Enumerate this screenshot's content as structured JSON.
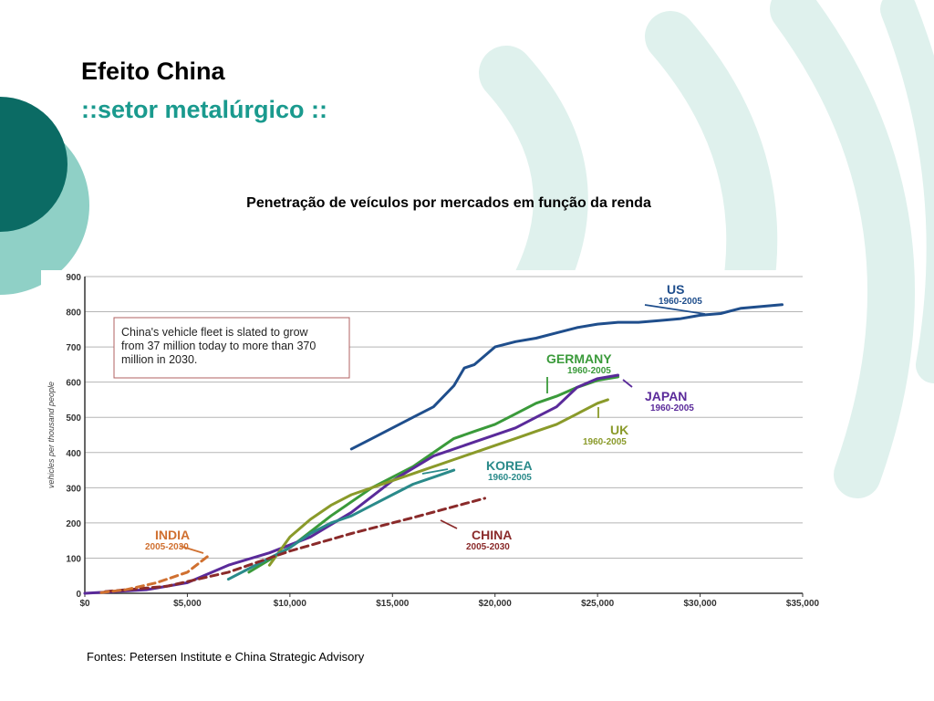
{
  "slide": {
    "title": "Efeito China",
    "subtitle": "::setor metalúrgico ::",
    "chart_caption": "Penetração de veículos por mercados em função da renda",
    "source": "Fontes: Petersen Institute e China Strategic Advisory"
  },
  "colors": {
    "brand_dark": "#0b6b64",
    "brand_light": "#8fd0c6",
    "caption_title_color": "#1a9a8e"
  },
  "chart_data": {
    "type": "line",
    "title": "",
    "xlabel": "",
    "ylabel": "vehicles per thousand people",
    "xlim": [
      0,
      35000
    ],
    "ylim": [
      0,
      900
    ],
    "grid": true,
    "x_ticks": [
      0,
      5000,
      10000,
      15000,
      20000,
      25000,
      30000,
      35000
    ],
    "x_tick_labels": [
      "$0",
      "$5,000",
      "$10,000",
      "$15,000",
      "$20,000",
      "$25,000",
      "$30,000",
      "$35,000"
    ],
    "y_ticks": [
      0,
      100,
      200,
      300,
      400,
      500,
      600,
      700,
      800,
      900
    ],
    "y_tick_labels": [
      "0",
      "100",
      "200",
      "300",
      "400",
      "500",
      "600",
      "700",
      "800",
      "900"
    ],
    "annotation_box": "China's vehicle fleet is slated to grow from 37 million today to more than 370 million in 2030.",
    "series": [
      {
        "name": "US",
        "period": "1960-2005",
        "color": "#1f4e8c",
        "dashed": false,
        "x": [
          13000,
          14000,
          15000,
          16000,
          17000,
          18000,
          18500,
          19000,
          20000,
          21000,
          22000,
          23000,
          24000,
          25000,
          26000,
          27000,
          28000,
          29000,
          30000,
          31000,
          32000,
          33000,
          34000
        ],
        "y": [
          410,
          440,
          470,
          500,
          530,
          590,
          640,
          650,
          700,
          715,
          725,
          740,
          755,
          765,
          770,
          770,
          775,
          780,
          790,
          795,
          810,
          815,
          820
        ]
      },
      {
        "name": "GERMANY",
        "period": "1960-2005",
        "color": "#3a9a3a",
        "dashed": false,
        "x": [
          8000,
          10000,
          12000,
          14000,
          16000,
          17000,
          18000,
          19000,
          20000,
          21000,
          22000,
          23000,
          24000,
          25000,
          26000
        ],
        "y": [
          60,
          130,
          220,
          300,
          360,
          400,
          440,
          460,
          480,
          510,
          540,
          560,
          585,
          605,
          615
        ]
      },
      {
        "name": "JAPAN",
        "period": "1960-2005",
        "color": "#5a2a9a",
        "dashed": false,
        "x": [
          0,
          3000,
          5000,
          7000,
          9000,
          11000,
          13000,
          15000,
          17000,
          19000,
          21000,
          22000,
          23000,
          24000,
          25000,
          26000
        ],
        "y": [
          0,
          10,
          30,
          80,
          115,
          160,
          230,
          320,
          390,
          430,
          470,
          500,
          530,
          585,
          610,
          620
        ]
      },
      {
        "name": "UK",
        "period": "1960-2005",
        "color": "#8a9a2a",
        "dashed": false,
        "x": [
          9000,
          10000,
          11000,
          12000,
          13000,
          14000,
          15000,
          16000,
          17000,
          18000,
          19000,
          20000,
          21000,
          22000,
          23000,
          24000,
          25000,
          25500
        ],
        "y": [
          80,
          160,
          210,
          250,
          280,
          300,
          320,
          340,
          360,
          380,
          400,
          420,
          440,
          460,
          480,
          510,
          540,
          550
        ]
      },
      {
        "name": "KOREA",
        "period": "1960-2005",
        "color": "#2a8a8a",
        "dashed": false,
        "x": [
          7000,
          8000,
          9000,
          10000,
          11000,
          12000,
          13000,
          14000,
          15000,
          16000,
          17000,
          18000
        ],
        "y": [
          40,
          70,
          100,
          130,
          170,
          200,
          220,
          250,
          280,
          310,
          330,
          350
        ]
      },
      {
        "name": "CHINA",
        "period": "2005-2030",
        "color": "#8a2a2a",
        "dashed": true,
        "x": [
          1000,
          4000,
          7000,
          10000,
          13000,
          16000,
          19500
        ],
        "y": [
          5,
          20,
          60,
          120,
          170,
          215,
          270
        ]
      },
      {
        "name": "INDIA",
        "period": "2005-2030",
        "color": "#d07030",
        "dashed": true,
        "x": [
          800,
          2000,
          3500,
          5000,
          6100
        ],
        "y": [
          2,
          10,
          30,
          60,
          110
        ]
      }
    ]
  }
}
